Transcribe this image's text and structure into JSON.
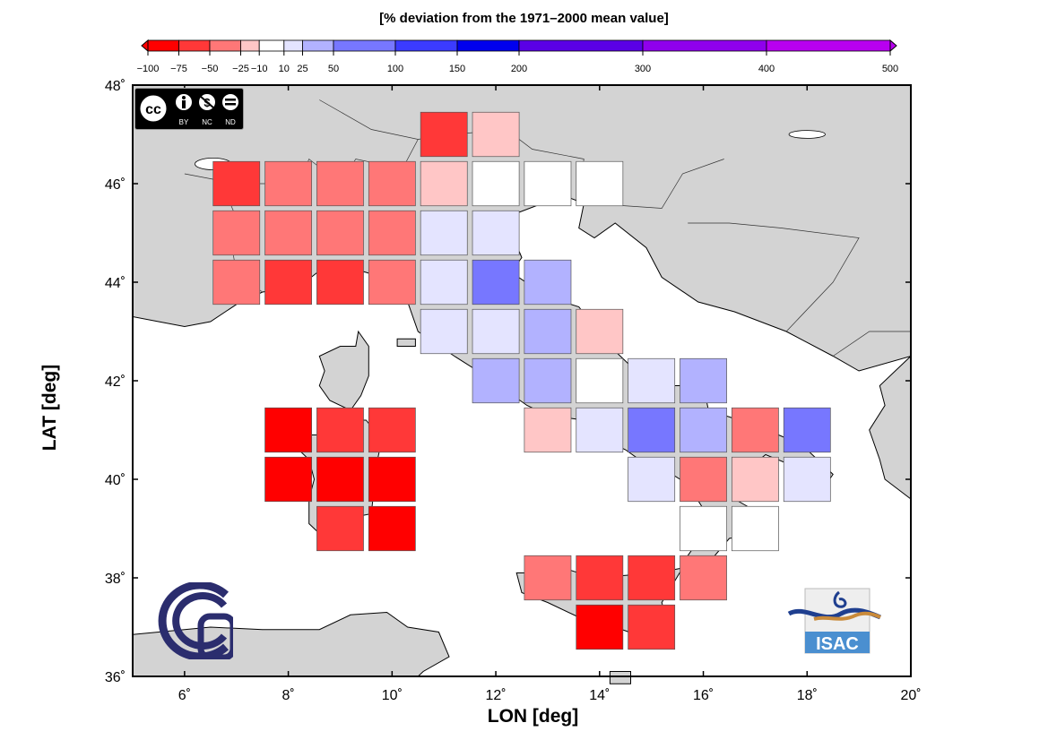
{
  "legend": {
    "title": "[% deviation from the 1971–2000 mean value]",
    "classes": [
      {
        "from": -100,
        "to": -75,
        "color": "#ff0000"
      },
      {
        "from": -75,
        "to": -50,
        "color": "#ff3838"
      },
      {
        "from": -50,
        "to": -25,
        "color": "#ff7777"
      },
      {
        "from": -25,
        "to": -10,
        "color": "#ffc6c6"
      },
      {
        "from": -10,
        "to": 10,
        "color": "#ffffff"
      },
      {
        "from": 10,
        "to": 25,
        "color": "#e4e4ff"
      },
      {
        "from": 25,
        "to": 50,
        "color": "#b2b2ff"
      },
      {
        "from": 50,
        "to": 100,
        "color": "#7777ff"
      },
      {
        "from": 100,
        "to": 150,
        "color": "#3b3bff"
      },
      {
        "from": 150,
        "to": 200,
        "color": "#0000ee"
      },
      {
        "from": 200,
        "to": 300,
        "color": "#5a00e6"
      },
      {
        "from": 300,
        "to": 400,
        "color": "#8f00ec"
      },
      {
        "from": 400,
        "to": 500,
        "color": "#b800f0"
      }
    ],
    "ticks": [
      {
        "value": -100,
        "label": "−100"
      },
      {
        "value": -75,
        "label": "−75"
      },
      {
        "value": -50,
        "label": "−50"
      },
      {
        "value": -25,
        "label": "−25"
      },
      {
        "value": -10,
        "label": "−10"
      },
      {
        "value": 10,
        "label": "10"
      },
      {
        "value": 25,
        "label": "25"
      },
      {
        "value": 50,
        "label": "50"
      },
      {
        "value": 100,
        "label": "100"
      },
      {
        "value": 150,
        "label": "150"
      },
      {
        "value": 200,
        "label": "200"
      },
      {
        "value": 300,
        "label": "300"
      },
      {
        "value": 400,
        "label": "400"
      },
      {
        "value": 500,
        "label": "500"
      }
    ]
  },
  "map": {
    "lon_range": [
      5,
      20
    ],
    "lat_range": [
      36,
      48
    ],
    "xlabel": "LON [deg]",
    "ylabel": "LAT [deg]",
    "lon_ticks": [
      {
        "value": 6,
        "label": "6˚"
      },
      {
        "value": 8,
        "label": "8˚"
      },
      {
        "value": 10,
        "label": "10˚"
      },
      {
        "value": 12,
        "label": "12˚"
      },
      {
        "value": 14,
        "label": "14˚"
      },
      {
        "value": 16,
        "label": "16˚"
      },
      {
        "value": 18,
        "label": "18˚"
      },
      {
        "value": 20,
        "label": "20˚"
      }
    ],
    "lat_ticks": [
      {
        "value": 36,
        "label": "36˚"
      },
      {
        "value": 38,
        "label": "38˚"
      },
      {
        "value": 40,
        "label": "40˚"
      },
      {
        "value": 42,
        "label": "42˚"
      },
      {
        "value": 44,
        "label": "44˚"
      },
      {
        "value": 46,
        "label": "46˚"
      },
      {
        "value": 48,
        "label": "48˚"
      }
    ],
    "land_color": "#d3d3d3",
    "sea_color": "#ffffff",
    "grid_cells": [
      {
        "lon": 11,
        "lat": 47,
        "deviation": -60
      },
      {
        "lon": 12,
        "lat": 47,
        "deviation": -20
      },
      {
        "lon": 7,
        "lat": 46,
        "deviation": -60
      },
      {
        "lon": 8,
        "lat": 46,
        "deviation": -40
      },
      {
        "lon": 9,
        "lat": 46,
        "deviation": -40
      },
      {
        "lon": 10,
        "lat": 46,
        "deviation": -40
      },
      {
        "lon": 11,
        "lat": 46,
        "deviation": -20
      },
      {
        "lon": 12,
        "lat": 46,
        "deviation": 0
      },
      {
        "lon": 13,
        "lat": 46,
        "deviation": 0
      },
      {
        "lon": 14,
        "lat": 46,
        "deviation": 0
      },
      {
        "lon": 7,
        "lat": 45,
        "deviation": -40
      },
      {
        "lon": 8,
        "lat": 45,
        "deviation": -40
      },
      {
        "lon": 9,
        "lat": 45,
        "deviation": -40
      },
      {
        "lon": 10,
        "lat": 45,
        "deviation": -40
      },
      {
        "lon": 11,
        "lat": 45,
        "deviation": 15
      },
      {
        "lon": 12,
        "lat": 45,
        "deviation": 15
      },
      {
        "lon": 7,
        "lat": 44,
        "deviation": -40
      },
      {
        "lon": 8,
        "lat": 44,
        "deviation": -60
      },
      {
        "lon": 9,
        "lat": 44,
        "deviation": -60
      },
      {
        "lon": 10,
        "lat": 44,
        "deviation": -40
      },
      {
        "lon": 11,
        "lat": 44,
        "deviation": 15
      },
      {
        "lon": 12,
        "lat": 44,
        "deviation": 75
      },
      {
        "lon": 13,
        "lat": 44,
        "deviation": 40
      },
      {
        "lon": 11,
        "lat": 43,
        "deviation": 15
      },
      {
        "lon": 12,
        "lat": 43,
        "deviation": 15
      },
      {
        "lon": 13,
        "lat": 43,
        "deviation": 40
      },
      {
        "lon": 14,
        "lat": 43,
        "deviation": -20
      },
      {
        "lon": 12,
        "lat": 42,
        "deviation": 40
      },
      {
        "lon": 13,
        "lat": 42,
        "deviation": 40
      },
      {
        "lon": 14,
        "lat": 42,
        "deviation": 0
      },
      {
        "lon": 15,
        "lat": 42,
        "deviation": 15
      },
      {
        "lon": 16,
        "lat": 42,
        "deviation": 40
      },
      {
        "lon": 8,
        "lat": 41,
        "deviation": -85
      },
      {
        "lon": 9,
        "lat": 41,
        "deviation": -60
      },
      {
        "lon": 10,
        "lat": 41,
        "deviation": -60
      },
      {
        "lon": 13,
        "lat": 41,
        "deviation": -20
      },
      {
        "lon": 14,
        "lat": 41,
        "deviation": 15
      },
      {
        "lon": 15,
        "lat": 41,
        "deviation": 75
      },
      {
        "lon": 16,
        "lat": 41,
        "deviation": 40
      },
      {
        "lon": 17,
        "lat": 41,
        "deviation": -40
      },
      {
        "lon": 18,
        "lat": 41,
        "deviation": 75
      },
      {
        "lon": 8,
        "lat": 40,
        "deviation": -85
      },
      {
        "lon": 9,
        "lat": 40,
        "deviation": -85
      },
      {
        "lon": 10,
        "lat": 40,
        "deviation": -85
      },
      {
        "lon": 15,
        "lat": 40,
        "deviation": 15
      },
      {
        "lon": 16,
        "lat": 40,
        "deviation": -40
      },
      {
        "lon": 17,
        "lat": 40,
        "deviation": -20
      },
      {
        "lon": 18,
        "lat": 40,
        "deviation": 15
      },
      {
        "lon": 9,
        "lat": 39,
        "deviation": -60
      },
      {
        "lon": 10,
        "lat": 39,
        "deviation": -85
      },
      {
        "lon": 16,
        "lat": 39,
        "deviation": 0
      },
      {
        "lon": 17,
        "lat": 39,
        "deviation": 0
      },
      {
        "lon": 13,
        "lat": 38,
        "deviation": -40
      },
      {
        "lon": 14,
        "lat": 38,
        "deviation": -60
      },
      {
        "lon": 15,
        "lat": 38,
        "deviation": -60
      },
      {
        "lon": 16,
        "lat": 38,
        "deviation": -40
      },
      {
        "lon": 14,
        "lat": 37,
        "deviation": -85
      },
      {
        "lon": 15,
        "lat": 37,
        "deviation": -60
      }
    ]
  },
  "logos": {
    "cc_license": {
      "icon": "creative-commons-by-nc-nd-icon",
      "text": [
        "BY",
        "NC",
        "ND"
      ]
    },
    "cnr": {
      "icon": "cnr-logo-icon",
      "color": "#2b2d6e"
    },
    "isac": {
      "icon": "isac-logo-icon",
      "text": "ISAC",
      "color": "#4a8fd0"
    }
  }
}
